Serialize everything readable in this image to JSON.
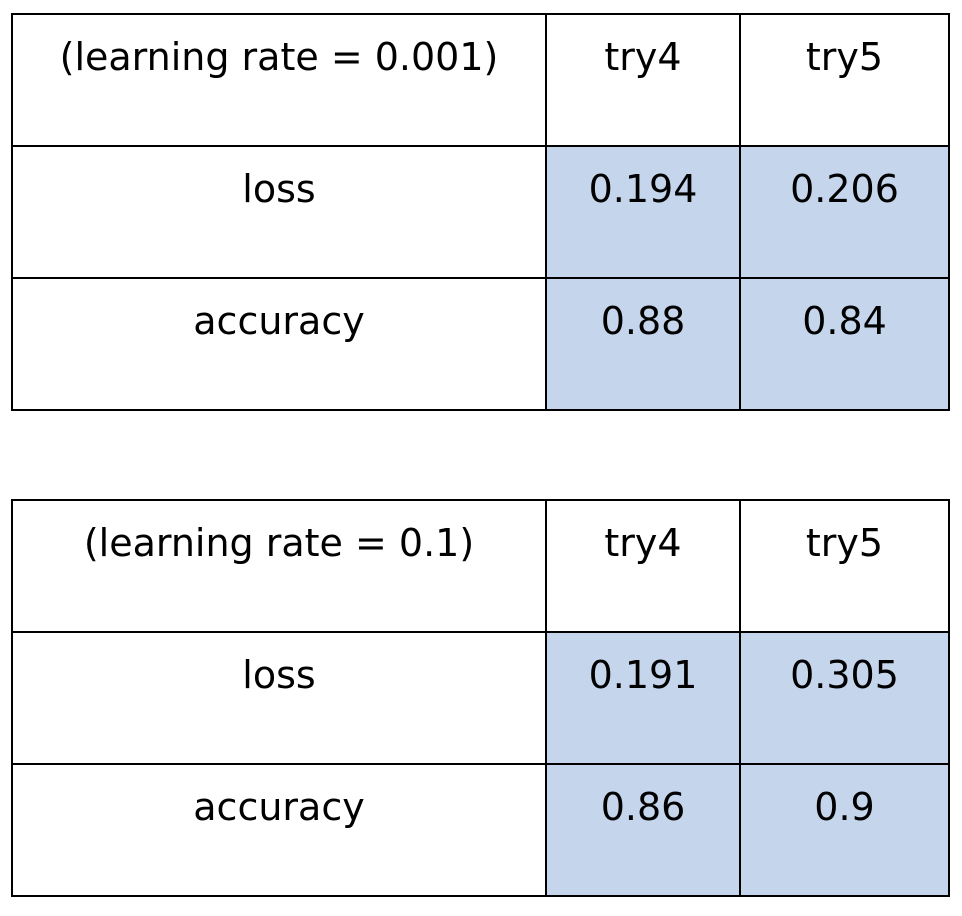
{
  "tables": [
    {
      "header": [
        "(learning rate = 0.001)",
        "try4",
        "try5"
      ],
      "rows": [
        [
          "loss",
          "0.194",
          "0.206"
        ],
        [
          "accuracy",
          "0.88",
          "0.84"
        ]
      ]
    },
    {
      "header": [
        "(learning rate = 0.1)",
        "try4",
        "try5"
      ],
      "rows": [
        [
          "loss",
          "0.191",
          "0.305"
        ],
        [
          "accuracy",
          "0.86",
          "0.9"
        ]
      ]
    }
  ]
}
